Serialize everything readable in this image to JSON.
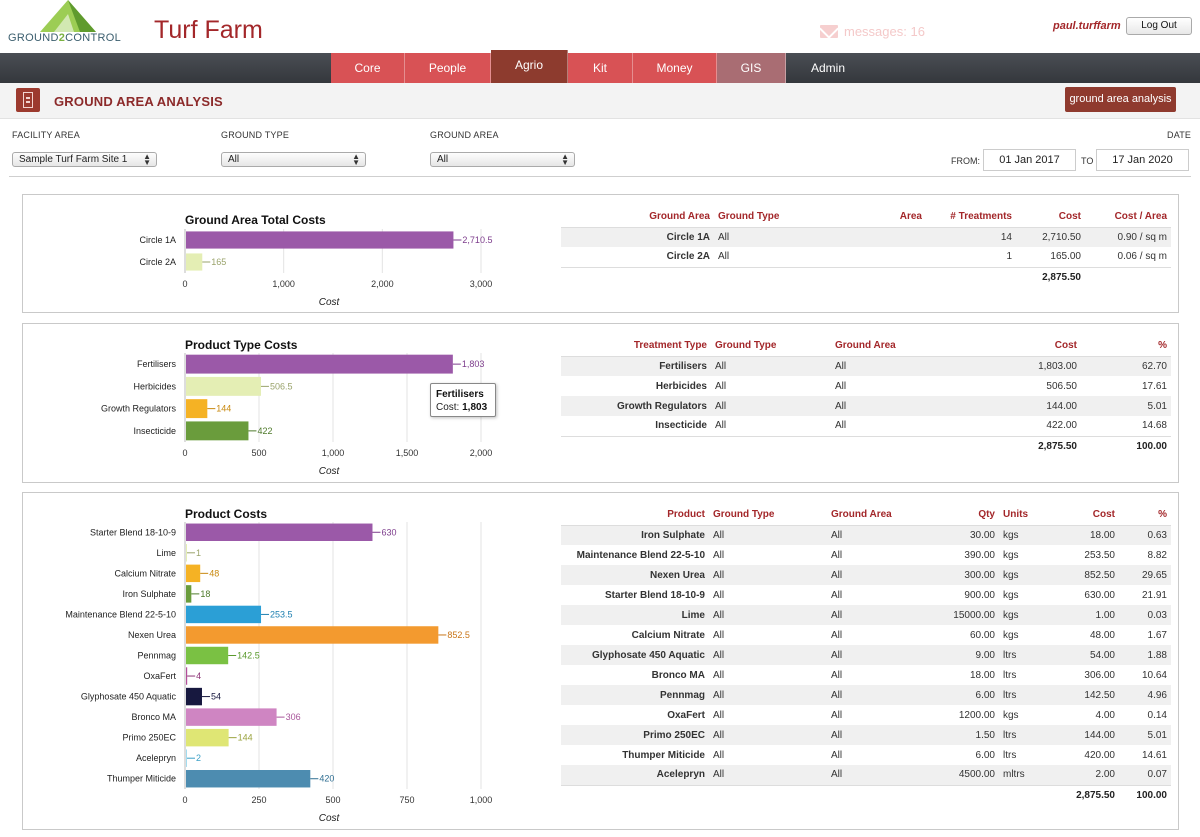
{
  "header": {
    "logo_text_a": "GROUND",
    "logo_text_b": "2",
    "logo_text_c": "CONTROL",
    "app_title": "Turf Farm",
    "messages": "messages: 16",
    "username": "paul.turffarm",
    "logout_label": "Log Out"
  },
  "nav": {
    "tabs": [
      {
        "label": "Core"
      },
      {
        "label": "People"
      },
      {
        "label": "Agrio"
      },
      {
        "label": "Kit"
      },
      {
        "label": "Money"
      },
      {
        "label": "GIS"
      },
      {
        "label": "Admin"
      }
    ],
    "active": "Agrio"
  },
  "section": {
    "title": "GROUND AREA ANALYSIS",
    "button_label": "ground area analysis"
  },
  "filters": {
    "facility_label": "FACILITY AREA",
    "facility_value": "Sample Turf Farm Site 1",
    "ground_type_label": "GROUND TYPE",
    "ground_type_value": "All",
    "ground_area_label": "GROUND AREA",
    "ground_area_value": "All",
    "date_label": "DATE",
    "from_label": "FROM:",
    "from_value": "01 Jan 2017",
    "to_label": "TO",
    "to_value": "17 Jan 2020"
  },
  "colors": {
    "brand_red": "#a3272a",
    "nav_red": "#d85255",
    "nav_active": "#8d3b2e"
  },
  "chart_data": [
    {
      "type": "bar",
      "orientation": "horizontal",
      "title": "Ground Area Total Costs",
      "xlabel": "Cost",
      "xlim": [
        0,
        3000
      ],
      "ticks": [
        "0",
        "1,000",
        "2,000",
        "3,000"
      ],
      "tick_values": [
        0,
        1000,
        2000,
        3000
      ],
      "categories": [
        "Circle 1A",
        "Circle 2A"
      ],
      "values": [
        2710.5,
        165
      ],
      "value_labels": [
        "2,710.5",
        "165"
      ],
      "colors": [
        "#9b59a8",
        "#e4eeb4"
      ],
      "label_colors": [
        "#7d3c8c",
        "#9aa36b"
      ]
    },
    {
      "type": "bar",
      "orientation": "horizontal",
      "title": "Product Type Costs",
      "xlabel": "Cost",
      "xlim": [
        0,
        2000
      ],
      "ticks": [
        "0",
        "500",
        "1,000",
        "1,500",
        "2,000"
      ],
      "tick_values": [
        0,
        500,
        1000,
        1500,
        2000
      ],
      "categories": [
        "Fertilisers",
        "Herbicides",
        "Growth Regulators",
        "Insecticide"
      ],
      "values": [
        1803,
        506.5,
        144,
        422
      ],
      "value_labels": [
        "1,803",
        "506.5",
        "144",
        "422"
      ],
      "colors": [
        "#9b59a8",
        "#e4eeb4",
        "#f5b224",
        "#6a9c3c"
      ],
      "label_colors": [
        "#7d3c8c",
        "#9aa36b",
        "#c8880e",
        "#4e7a2a"
      ],
      "tooltip": {
        "title": "Fertilisers",
        "label": "Cost:",
        "value": "1,803"
      }
    },
    {
      "type": "bar",
      "orientation": "horizontal",
      "title": "Product Costs",
      "xlabel": "Cost",
      "xlim": [
        0,
        1000
      ],
      "ticks": [
        "0",
        "250",
        "500",
        "750",
        "1,000"
      ],
      "tick_values": [
        0,
        250,
        500,
        750,
        1000
      ],
      "categories": [
        "Starter Blend 18-10-9",
        "Lime",
        "Calcium Nitrate",
        "Iron Sulphate",
        "Maintenance Blend 22-5-10",
        "Nexen Urea",
        "Pennmag",
        "OxaFert",
        "Glyphosate 450 Aquatic",
        "Bronco MA",
        "Primo 250EC",
        "Acelepryn",
        "Thumper Miticide"
      ],
      "values": [
        630,
        1,
        48,
        18,
        253.5,
        852.5,
        142.5,
        4,
        54,
        306,
        144,
        2,
        420
      ],
      "value_labels": [
        "630",
        "1",
        "48",
        "18",
        "253.5",
        "852.5",
        "142.5",
        "4",
        "54",
        "306",
        "144",
        "2",
        "420"
      ],
      "colors": [
        "#9b59a8",
        "#e4eeb4",
        "#f5b224",
        "#6a9c3c",
        "#2b9fd6",
        "#f39a2f",
        "#7ac143",
        "#b34d9a",
        "#17183f",
        "#cf85c2",
        "#dfe674",
        "#a3dcef",
        "#4d8cb0"
      ],
      "label_colors": [
        "#7d3c8c",
        "#9aa36b",
        "#c8880e",
        "#4e7a2a",
        "#1d7fb0",
        "#c9761a",
        "#5a9a2d",
        "#8e3478",
        "#17183f",
        "#a9569b",
        "#9aa33e",
        "#3ba0c6",
        "#2f6e92"
      ]
    }
  ],
  "tables": {
    "ground_area": {
      "headers": [
        "Ground Area",
        "Ground Type",
        "Area",
        "# Treatments",
        "Cost",
        "Cost / Area"
      ],
      "rows": [
        [
          "Circle 1A",
          "All",
          "",
          "14",
          "2,710.50",
          "0.90 / sq m"
        ],
        [
          "Circle 2A",
          "All",
          "",
          "1",
          "165.00",
          "0.06 / sq m"
        ]
      ],
      "total_cost": "2,875.50"
    },
    "product_type": {
      "headers": [
        "Treatment Type",
        "Ground Type",
        "Ground Area",
        "Cost",
        "%"
      ],
      "rows": [
        [
          "Fertilisers",
          "All",
          "All",
          "1,803.00",
          "62.70"
        ],
        [
          "Herbicides",
          "All",
          "All",
          "506.50",
          "17.61"
        ],
        [
          "Growth Regulators",
          "All",
          "All",
          "144.00",
          "5.01"
        ],
        [
          "Insecticide",
          "All",
          "All",
          "422.00",
          "14.68"
        ]
      ],
      "total_cost": "2,875.50",
      "total_pct": "100.00"
    },
    "product": {
      "headers": [
        "Product",
        "Ground Type",
        "Ground Area",
        "Qty",
        "Units",
        "Cost",
        "%"
      ],
      "rows": [
        [
          "Iron Sulphate",
          "All",
          "All",
          "30.00",
          "kgs",
          "18.00",
          "0.63"
        ],
        [
          "Maintenance Blend 22-5-10",
          "All",
          "All",
          "390.00",
          "kgs",
          "253.50",
          "8.82"
        ],
        [
          "Nexen Urea",
          "All",
          "All",
          "300.00",
          "kgs",
          "852.50",
          "29.65"
        ],
        [
          "Starter Blend 18-10-9",
          "All",
          "All",
          "900.00",
          "kgs",
          "630.00",
          "21.91"
        ],
        [
          "Lime",
          "All",
          "All",
          "15000.00",
          "kgs",
          "1.00",
          "0.03"
        ],
        [
          "Calcium Nitrate",
          "All",
          "All",
          "60.00",
          "kgs",
          "48.00",
          "1.67"
        ],
        [
          "Glyphosate 450 Aquatic",
          "All",
          "All",
          "9.00",
          "ltrs",
          "54.00",
          "1.88"
        ],
        [
          "Bronco MA",
          "All",
          "All",
          "18.00",
          "ltrs",
          "306.00",
          "10.64"
        ],
        [
          "Pennmag",
          "All",
          "All",
          "6.00",
          "ltrs",
          "142.50",
          "4.96"
        ],
        [
          "OxaFert",
          "All",
          "All",
          "1200.00",
          "kgs",
          "4.00",
          "0.14"
        ],
        [
          "Primo 250EC",
          "All",
          "All",
          "1.50",
          "ltrs",
          "144.00",
          "5.01"
        ],
        [
          "Thumper Miticide",
          "All",
          "All",
          "6.00",
          "ltrs",
          "420.00",
          "14.61"
        ],
        [
          "Acelepryn",
          "All",
          "All",
          "4500.00",
          "mltrs",
          "2.00",
          "0.07"
        ]
      ],
      "total_cost": "2,875.50",
      "total_pct": "100.00"
    }
  }
}
